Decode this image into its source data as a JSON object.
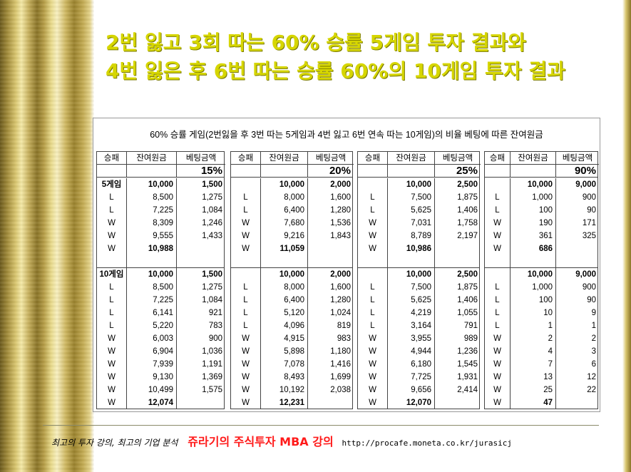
{
  "title": {
    "line1": "2번 잃고 3회 따는 60% 승률 5게임 투자 결과와",
    "line2": "4번 잃은 후 6번 따는 승률 60%의 10게임 투자 결과"
  },
  "table": {
    "caption": "60% 승률 게임(2번잃을 후 3번 따는 5게임과 4번 잃고 6번 연속 따는 10게임)의 비율 베팅에 따른 잔여원금",
    "headers": [
      "승패",
      "잔여원금",
      "베팅금액"
    ],
    "blocks": [
      {
        "pct": "15%",
        "rows": [
          [
            "5게임",
            "10,000",
            "1,500"
          ],
          [
            "L",
            "8,500",
            "1,275"
          ],
          [
            "L",
            "7,225",
            "1,084"
          ],
          [
            "W",
            "8,309",
            "1,246"
          ],
          [
            "W",
            "9,555",
            "1,433"
          ],
          [
            "W",
            "10,988",
            ""
          ],
          [
            "",
            "",
            " "
          ],
          [
            "10게임",
            "10,000",
            "1,500"
          ],
          [
            "L",
            "8,500",
            "1,275"
          ],
          [
            "L",
            "7,225",
            "1,084"
          ],
          [
            "L",
            "6,141",
            "921"
          ],
          [
            "L",
            "5,220",
            "783"
          ],
          [
            "W",
            "6,003",
            "900"
          ],
          [
            "W",
            "6,904",
            "1,036"
          ],
          [
            "W",
            "7,939",
            "1,191"
          ],
          [
            "W",
            "9,130",
            "1,369"
          ],
          [
            "W",
            "10,499",
            "1,575"
          ],
          [
            "W",
            "12,074",
            ""
          ]
        ]
      },
      {
        "pct": "20%",
        "rows": [
          [
            "",
            "10,000",
            "2,000"
          ],
          [
            "L",
            "8,000",
            "1,600"
          ],
          [
            "L",
            "6,400",
            "1,280"
          ],
          [
            "W",
            "7,680",
            "1,536"
          ],
          [
            "W",
            "9,216",
            "1,843"
          ],
          [
            "W",
            "11,059",
            ""
          ],
          [
            "",
            "",
            " "
          ],
          [
            "",
            "10,000",
            "2,000"
          ],
          [
            "L",
            "8,000",
            "1,600"
          ],
          [
            "L",
            "6,400",
            "1,280"
          ],
          [
            "L",
            "5,120",
            "1,024"
          ],
          [
            "L",
            "4,096",
            "819"
          ],
          [
            "W",
            "4,915",
            "983"
          ],
          [
            "W",
            "5,898",
            "1,180"
          ],
          [
            "W",
            "7,078",
            "1,416"
          ],
          [
            "W",
            "8,493",
            "1,699"
          ],
          [
            "W",
            "10,192",
            "2,038"
          ],
          [
            "W",
            "12,231",
            ""
          ]
        ]
      },
      {
        "pct": "25%",
        "rows": [
          [
            "",
            "10,000",
            "2,500"
          ],
          [
            "L",
            "7,500",
            "1,875"
          ],
          [
            "L",
            "5,625",
            "1,406"
          ],
          [
            "W",
            "7,031",
            "1,758"
          ],
          [
            "W",
            "8,789",
            "2,197"
          ],
          [
            "W",
            "10,986",
            ""
          ],
          [
            "",
            "",
            " "
          ],
          [
            "",
            "10,000",
            "2,500"
          ],
          [
            "L",
            "7,500",
            "1,875"
          ],
          [
            "L",
            "5,625",
            "1,406"
          ],
          [
            "L",
            "4,219",
            "1,055"
          ],
          [
            "L",
            "3,164",
            "791"
          ],
          [
            "W",
            "3,955",
            "989"
          ],
          [
            "W",
            "4,944",
            "1,236"
          ],
          [
            "W",
            "6,180",
            "1,545"
          ],
          [
            "W",
            "7,725",
            "1,931"
          ],
          [
            "W",
            "9,656",
            "2,414"
          ],
          [
            "W",
            "12,070",
            ""
          ]
        ]
      },
      {
        "pct": "90%",
        "rows": [
          [
            "",
            "10,000",
            "9,000"
          ],
          [
            "L",
            "1,000",
            "900"
          ],
          [
            "L",
            "100",
            "90"
          ],
          [
            "W",
            "190",
            "171"
          ],
          [
            "W",
            "361",
            "325"
          ],
          [
            "W",
            "686",
            ""
          ],
          [
            "",
            "",
            " "
          ],
          [
            "",
            "10,000",
            "9,000"
          ],
          [
            "L",
            "1,000",
            "900"
          ],
          [
            "L",
            "100",
            "90"
          ],
          [
            "L",
            "10",
            "9"
          ],
          [
            "L",
            "1",
            "1"
          ],
          [
            "W",
            "2",
            "2"
          ],
          [
            "W",
            "4",
            "3"
          ],
          [
            "W",
            "7",
            "6"
          ],
          [
            "W",
            "13",
            "12"
          ],
          [
            "W",
            "25",
            "22"
          ],
          [
            "W",
            "47",
            ""
          ]
        ]
      }
    ]
  },
  "footer": {
    "slogan": "최고의 투자 강의, 최고의 기업 분석",
    "brand": "쥬라기의 주식투자 MBA 강의",
    "url": "http://procafe.moneta.co.kr/jurasicj",
    "brand_color": "#ff1a1a"
  }
}
